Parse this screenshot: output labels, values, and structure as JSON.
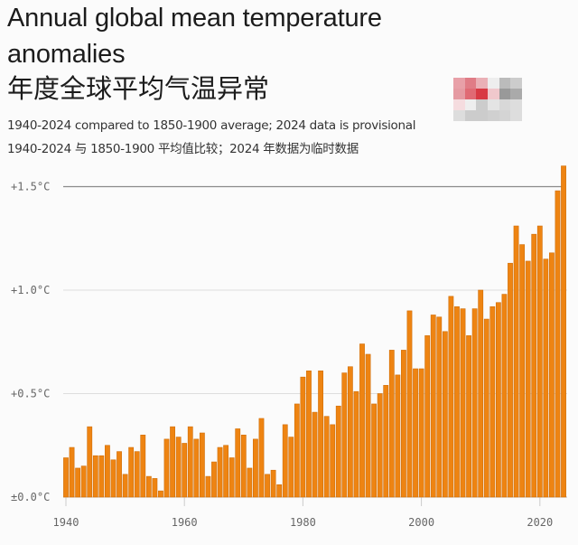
{
  "header": {
    "title_en": "Annual global mean temperature anomalies",
    "title_cn": "年度全球平均气温异常",
    "subtitle_en": "1940-2024 compared to 1850-1900 average; 2024 data is provisional",
    "subtitle_cn": "1940-2024 与 1850-1900 平均值比较；2024 年数据为临时数据"
  },
  "colors": {
    "bar": "#ee8412",
    "bar_edge": "#d06e08",
    "threshold_line": "#8a8a8a",
    "grid": "#dddddd"
  },
  "chart_data": {
    "type": "bar",
    "title": "Annual global mean temperature anomalies",
    "xlabel": "",
    "ylabel": "",
    "ylim": [
      0,
      1.6
    ],
    "grid": true,
    "yticks": [
      {
        "value": 0.0,
        "label": "±0.0°C"
      },
      {
        "value": 0.5,
        "label": "+0.5°C"
      },
      {
        "value": 1.0,
        "label": "+1.0°C"
      },
      {
        "value": 1.5,
        "label": "+1.5°C"
      }
    ],
    "xticks": [
      "1940",
      "1960",
      "1980",
      "2000",
      "2020"
    ],
    "reference_line": 1.5,
    "x": [
      1940,
      1941,
      1942,
      1943,
      1944,
      1945,
      1946,
      1947,
      1948,
      1949,
      1950,
      1951,
      1952,
      1953,
      1954,
      1955,
      1956,
      1957,
      1958,
      1959,
      1960,
      1961,
      1962,
      1963,
      1964,
      1965,
      1966,
      1967,
      1968,
      1969,
      1970,
      1971,
      1972,
      1973,
      1974,
      1975,
      1976,
      1977,
      1978,
      1979,
      1980,
      1981,
      1982,
      1983,
      1984,
      1985,
      1986,
      1987,
      1988,
      1989,
      1990,
      1991,
      1992,
      1993,
      1994,
      1995,
      1996,
      1997,
      1998,
      1999,
      2000,
      2001,
      2002,
      2003,
      2004,
      2005,
      2006,
      2007,
      2008,
      2009,
      2010,
      2011,
      2012,
      2013,
      2014,
      2015,
      2016,
      2017,
      2018,
      2019,
      2020,
      2021,
      2022,
      2023,
      2024
    ],
    "values": [
      0.19,
      0.24,
      0.14,
      0.15,
      0.34,
      0.2,
      0.2,
      0.25,
      0.18,
      0.22,
      0.11,
      0.24,
      0.22,
      0.3,
      0.1,
      0.09,
      0.03,
      0.28,
      0.34,
      0.29,
      0.26,
      0.34,
      0.28,
      0.31,
      0.1,
      0.17,
      0.24,
      0.25,
      0.19,
      0.33,
      0.3,
      0.14,
      0.28,
      0.38,
      0.11,
      0.13,
      0.06,
      0.35,
      0.29,
      0.45,
      0.58,
      0.61,
      0.41,
      0.61,
      0.39,
      0.35,
      0.44,
      0.6,
      0.63,
      0.51,
      0.74,
      0.69,
      0.45,
      0.5,
      0.54,
      0.71,
      0.59,
      0.71,
      0.9,
      0.62,
      0.62,
      0.78,
      0.88,
      0.87,
      0.8,
      0.97,
      0.92,
      0.91,
      0.78,
      0.91,
      1.0,
      0.86,
      0.92,
      0.94,
      0.98,
      1.13,
      1.31,
      1.22,
      1.14,
      1.27,
      1.31,
      1.15,
      1.18,
      1.48,
      1.6
    ]
  }
}
